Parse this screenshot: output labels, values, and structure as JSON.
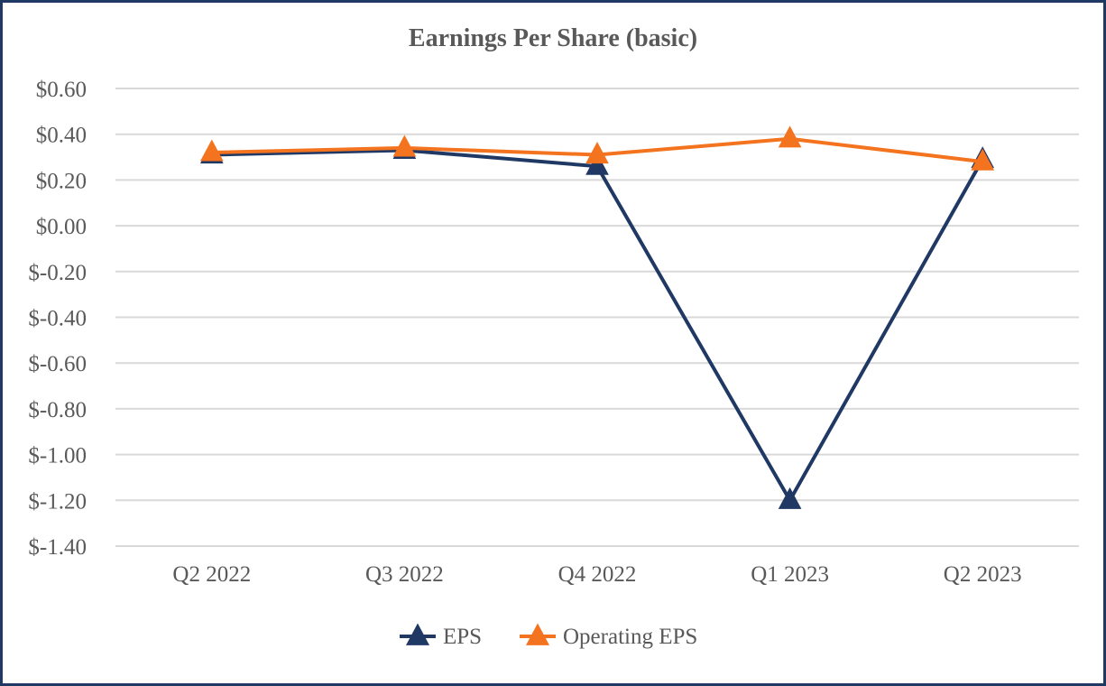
{
  "chart_data": {
    "type": "line",
    "title": "Earnings Per Share (basic)",
    "xlabel": "",
    "ylabel": "",
    "categories": [
      "Q2 2022",
      "Q3 2022",
      "Q4 2022",
      "Q1 2023",
      "Q2 2023"
    ],
    "y_ticks": [
      0.6,
      0.4,
      0.2,
      0.0,
      -0.2,
      -0.4,
      -0.6,
      -0.8,
      -1.0,
      -1.2,
      -1.4
    ],
    "y_tick_labels": [
      "$0.60",
      "$0.40",
      "$0.20",
      "$0.00",
      "$-0.20",
      "$-0.40",
      "$-0.60",
      "$-0.80",
      "$-1.00",
      "$-1.20",
      "$-1.40"
    ],
    "ylim": [
      -1.4,
      0.6
    ],
    "grid": true,
    "legend_position": "bottom",
    "series": [
      {
        "name": "EPS",
        "values": [
          0.31,
          0.33,
          0.26,
          -1.2,
          0.29
        ],
        "color": "#1f3864",
        "marker": "triangle"
      },
      {
        "name": "Operating EPS",
        "values": [
          0.32,
          0.34,
          0.31,
          0.38,
          0.28
        ],
        "color": "#f4731f",
        "marker": "triangle"
      }
    ]
  },
  "colors": {
    "border": "#1f3864",
    "gridline": "#d9d9d9",
    "text": "#595959"
  }
}
